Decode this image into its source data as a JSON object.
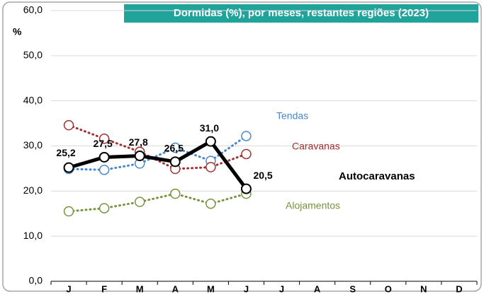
{
  "chart_data": {
    "type": "line",
    "title": "Dormidas (%), por meses, restantes regiões (2023)",
    "y_label": "%",
    "categories": [
      "J",
      "F",
      "M",
      "A",
      "M",
      "J",
      "J",
      "A",
      "S",
      "O",
      "N",
      "D"
    ],
    "series": [
      {
        "name": "Tendas",
        "color": "#4a86c8",
        "style": "dotted",
        "values": [
          24.9,
          24.7,
          26.1,
          29.6,
          26.7,
          32.2,
          null,
          null,
          null,
          null,
          null,
          null
        ]
      },
      {
        "name": "Caravanas",
        "color": "#a0302f",
        "style": "dotted",
        "values": [
          34.6,
          31.6,
          28.7,
          24.9,
          25.3,
          28.2,
          null,
          null,
          null,
          null,
          null,
          null
        ]
      },
      {
        "name": "Alojamentos",
        "color": "#77933c",
        "style": "dotted",
        "values": [
          15.5,
          16.2,
          17.6,
          19.4,
          17.2,
          19.4,
          null,
          null,
          null,
          null,
          null,
          null
        ]
      },
      {
        "name": "Autocaravanas",
        "color": "#000000",
        "style": "solid",
        "values": [
          25.2,
          27.5,
          27.8,
          26.5,
          31.0,
          20.5,
          null,
          null,
          null,
          null,
          null,
          null
        ],
        "value_labels": [
          "25,2",
          "27,5",
          "27,8",
          "26,5",
          "31,0",
          "20,5",
          null,
          null,
          null,
          null,
          null,
          null
        ]
      }
    ],
    "ylim": [
      0,
      60
    ],
    "yticks": [
      {
        "value": 0,
        "label": "0,0"
      },
      {
        "value": 10,
        "label": "10,0"
      },
      {
        "value": 20,
        "label": "20,0"
      },
      {
        "value": 30,
        "label": "30,0"
      },
      {
        "value": 40,
        "label": "40,0"
      },
      {
        "value": 50,
        "label": "50,0"
      },
      {
        "value": 60,
        "label": "60,0"
      }
    ],
    "grid": true
  }
}
